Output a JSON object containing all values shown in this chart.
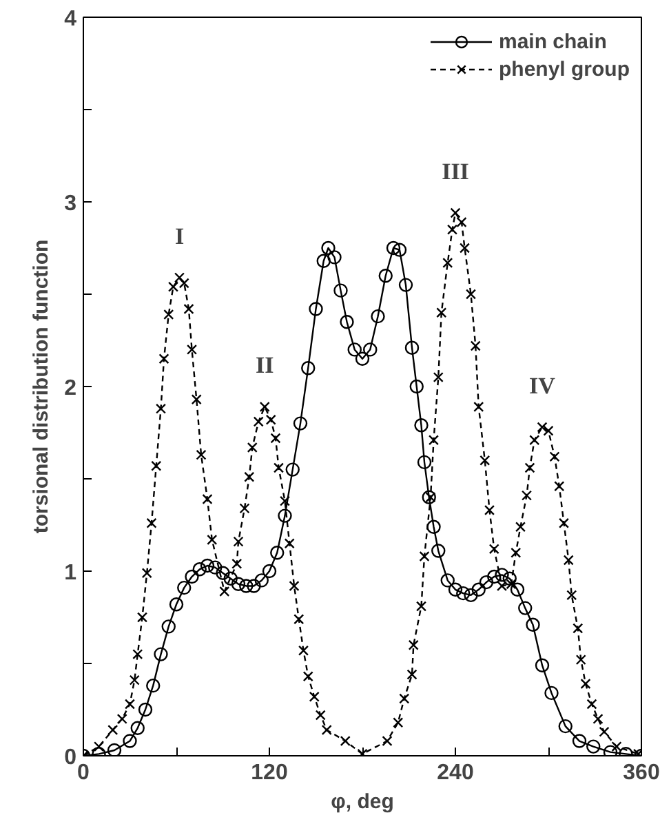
{
  "chart_data": {
    "type": "line",
    "xlabel": "φ, deg",
    "ylabel": "torsional distribution function",
    "xlim": [
      0,
      360
    ],
    "ylim": [
      0,
      4
    ],
    "xticks": [
      0,
      {
        "value": 60,
        "label": null
      },
      120,
      {
        "value": 180,
        "label": null
      },
      240,
      {
        "value": 300,
        "label": null
      },
      360
    ],
    "yticks": [
      0,
      {
        "value": 0.5,
        "label": null
      },
      1,
      {
        "value": 1.5,
        "label": null
      },
      2,
      {
        "value": 2.5,
        "label": null
      },
      3,
      {
        "value": 3.5,
        "label": null
      },
      4
    ],
    "grid": false,
    "legend": "top right",
    "series": [
      {
        "name": "main chain",
        "color": "#000000",
        "marker": "circle",
        "line_style": "solid",
        "x": [
          0,
          10,
          20,
          30,
          35,
          40,
          45,
          50,
          55,
          60,
          65,
          70,
          75,
          80,
          85,
          90,
          95,
          100,
          105,
          110,
          115,
          120,
          125,
          130,
          135,
          140,
          145,
          150,
          155,
          158,
          162,
          166,
          170,
          175,
          180,
          185,
          190,
          195,
          200,
          204,
          208,
          212,
          215,
          218,
          220,
          223,
          226,
          229,
          235,
          240,
          245,
          250,
          255,
          260,
          265,
          270,
          275,
          280,
          285,
          290,
          296,
          302,
          311,
          320,
          329,
          340,
          350,
          360
        ],
        "values": [
          0,
          0.01,
          0.03,
          0.08,
          0.15,
          0.25,
          0.38,
          0.55,
          0.7,
          0.82,
          0.91,
          0.97,
          1.01,
          1.03,
          1.02,
          0.99,
          0.96,
          0.93,
          0.92,
          0.92,
          0.95,
          1.0,
          1.1,
          1.3,
          1.55,
          1.8,
          2.1,
          2.42,
          2.68,
          2.75,
          2.7,
          2.52,
          2.35,
          2.2,
          2.15,
          2.2,
          2.38,
          2.6,
          2.75,
          2.74,
          2.55,
          2.21,
          2.0,
          1.79,
          1.59,
          1.4,
          1.24,
          1.11,
          0.95,
          0.9,
          0.88,
          0.87,
          0.9,
          0.94,
          0.97,
          0.98,
          0.96,
          0.9,
          0.8,
          0.71,
          0.49,
          0.34,
          0.16,
          0.08,
          0.05,
          0.02,
          0.01,
          0
        ]
      },
      {
        "name": "phenyl group",
        "color": "#000000",
        "marker": "cross",
        "line_style": "dashed",
        "x": [
          0,
          10,
          19,
          25,
          30,
          33,
          35,
          38,
          41,
          44,
          47,
          50,
          52,
          55,
          58,
          62,
          65,
          68,
          70,
          73,
          76,
          80,
          83,
          91,
          99,
          100,
          104,
          107,
          109,
          113,
          117,
          121,
          124,
          126,
          130,
          133,
          136,
          139,
          142,
          145,
          149,
          153,
          157,
          169,
          180,
          196,
          203,
          207,
          212,
          213,
          218,
          220,
          224,
          226,
          229,
          231,
          235,
          238,
          240,
          244,
          246,
          250,
          253,
          255,
          259,
          262,
          265,
          270,
          276,
          279,
          282,
          286,
          288,
          291,
          296,
          300,
          304,
          307,
          310,
          313,
          315,
          319,
          321,
          324,
          328,
          332,
          336,
          344,
          358
        ],
        "values": [
          0,
          0.05,
          0.14,
          0.2,
          0.28,
          0.41,
          0.55,
          0.75,
          0.99,
          1.26,
          1.57,
          1.88,
          2.15,
          2.39,
          2.54,
          2.59,
          2.56,
          2.42,
          2.2,
          1.93,
          1.63,
          1.39,
          1.17,
          0.89,
          1.04,
          1.16,
          1.34,
          1.51,
          1.67,
          1.81,
          1.89,
          1.82,
          1.72,
          1.56,
          1.38,
          1.15,
          0.92,
          0.74,
          0.57,
          0.43,
          0.32,
          0.22,
          0.14,
          0.08,
          0.01,
          0.08,
          0.18,
          0.31,
          0.44,
          0.6,
          0.81,
          1.08,
          1.4,
          1.71,
          2.05,
          2.4,
          2.67,
          2.85,
          2.94,
          2.89,
          2.75,
          2.5,
          2.22,
          1.89,
          1.6,
          1.33,
          1.12,
          0.92,
          0.93,
          1.1,
          1.24,
          1.41,
          1.56,
          1.71,
          1.78,
          1.76,
          1.62,
          1.46,
          1.26,
          1.06,
          0.87,
          0.69,
          0.52,
          0.39,
          0.28,
          0.2,
          0.13,
          0.05,
          0.01
        ]
      }
    ],
    "annotations": [
      "I",
      "II",
      "III",
      "IV"
    ]
  }
}
